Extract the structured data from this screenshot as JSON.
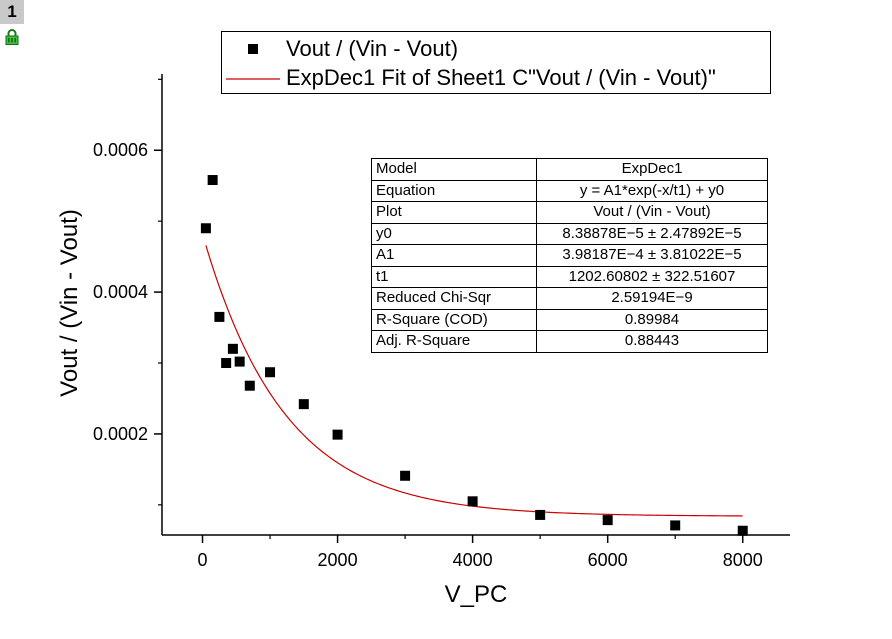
{
  "page": {
    "badge": "1"
  },
  "icons": {
    "lock": "lock-icon"
  },
  "colors": {
    "markers": "#000000",
    "fit_line": "#cc0000",
    "axes": "#000000"
  },
  "legend": {
    "entries": [
      {
        "label": "Vout / (Vin - Vout)",
        "symbol": "square"
      },
      {
        "label": "ExpDec1 Fit of Sheet1 C\"Vout / (Vin - Vout)\"",
        "symbol": "line"
      }
    ]
  },
  "stats_table": {
    "rows": [
      {
        "key": "Model",
        "value": "ExpDec1"
      },
      {
        "key": "Equation",
        "value": "y = A1*exp(-x/t1) + y0"
      },
      {
        "key": "Plot",
        "value": "Vout / (Vin - Vout)"
      },
      {
        "key": "y0",
        "value": "8.38878E−5 ± 2.47892E−5"
      },
      {
        "key": "A1",
        "value": "3.98187E−4 ± 3.81022E−5"
      },
      {
        "key": "t1",
        "value": "1202.60802 ± 322.51607"
      },
      {
        "key": "Reduced Chi-Sqr",
        "value": "2.59194E−9"
      },
      {
        "key": "R-Square (COD)",
        "value": "0.89984"
      },
      {
        "key": "Adj. R-Square",
        "value": "0.88443"
      }
    ]
  },
  "chart_data": {
    "type": "scatter",
    "xlabel": "V_PC",
    "ylabel": "Vout / (Vin - Vout)",
    "xlim": [
      -600,
      8700
    ],
    "ylim": [
      5.75e-05,
      0.0007075
    ],
    "x_ticks": [
      0,
      2000,
      4000,
      6000,
      8000
    ],
    "x_tick_labels": [
      "0",
      "2000",
      "4000",
      "6000",
      "8000"
    ],
    "y_ticks": [
      0.0002,
      0.0004,
      0.0006
    ],
    "y_tick_labels": [
      "0.0002",
      "0.0004",
      "0.0006"
    ],
    "grid": false,
    "legend_position": "top",
    "series": [
      {
        "name": "Vout / (Vin - Vout)",
        "kind": "scatter",
        "points": [
          {
            "x": 50,
            "y": 0.00049
          },
          {
            "x": 150,
            "y": 0.000558
          },
          {
            "x": 250,
            "y": 0.000365
          },
          {
            "x": 350,
            "y": 0.0003
          },
          {
            "x": 450,
            "y": 0.00032
          },
          {
            "x": 550,
            "y": 0.000302
          },
          {
            "x": 700,
            "y": 0.000268
          },
          {
            "x": 1000,
            "y": 0.000287
          },
          {
            "x": 1500,
            "y": 0.000242
          },
          {
            "x": 2000,
            "y": 0.000199
          },
          {
            "x": 3000,
            "y": 0.000141
          },
          {
            "x": 4000,
            "y": 0.000105
          },
          {
            "x": 5000,
            "y": 8.58e-05
          },
          {
            "x": 6000,
            "y": 7.85e-05
          },
          {
            "x": 7000,
            "y": 7.1e-05
          },
          {
            "x": 8000,
            "y": 6.35e-05
          }
        ]
      },
      {
        "name": "ExpDec1 Fit of Sheet1 C\"Vout / (Vin - Vout)\"",
        "kind": "line",
        "fit": {
          "model": "ExpDec1",
          "y0": 8.38878e-05,
          "A1": 0.000398187,
          "t1": 1202.60802,
          "x_from": 50,
          "x_to": 8000
        }
      }
    ]
  }
}
